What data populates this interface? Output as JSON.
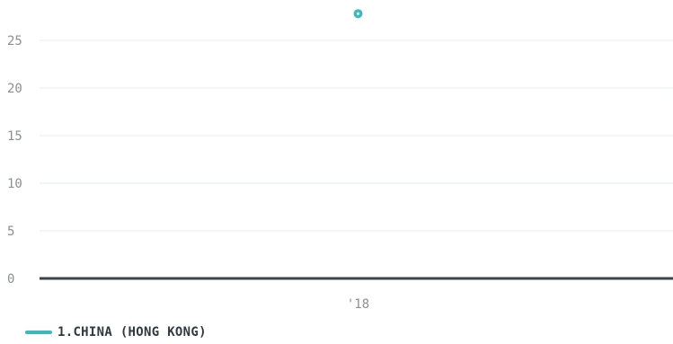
{
  "chart_data": {
    "type": "scatter",
    "categories": [
      "'18"
    ],
    "series": [
      {
        "name": "1.CHINA (HONG KONG)",
        "values": [
          28
        ]
      }
    ],
    "y_ticks": [
      "0",
      "5",
      "10",
      "15",
      "20",
      "25"
    ],
    "ylim": [
      0,
      28.5
    ],
    "grid": true,
    "legend_position": "bottom-left",
    "colors": {
      "series": "#3fb8bd",
      "grid": "#e9ecee",
      "baseline": "#3a4449"
    }
  }
}
